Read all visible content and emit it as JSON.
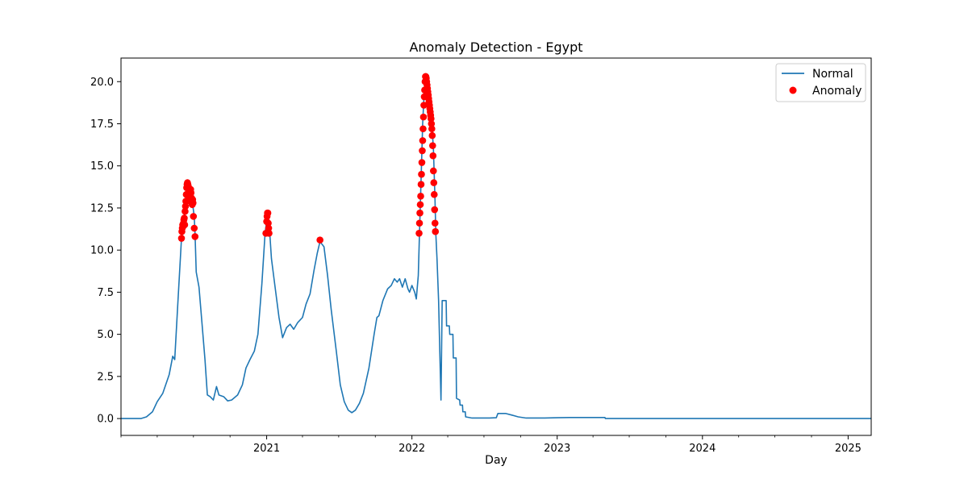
{
  "chart_data": {
    "type": "line",
    "title": "Anomaly Detection - Egypt",
    "xlabel": "Day",
    "ylabel": "",
    "x_type": "date",
    "xlim": [
      "2020-01-01",
      "2025-02-28"
    ],
    "ylim": [
      -1.0,
      21.4
    ],
    "yticks": [
      0.0,
      2.5,
      5.0,
      7.5,
      10.0,
      12.5,
      15.0,
      17.5,
      20.0
    ],
    "ytick_labels": [
      "0.0",
      "2.5",
      "5.0",
      "7.5",
      "10.0",
      "12.5",
      "15.0",
      "17.5",
      "20.0"
    ],
    "xticks": [
      "2021-01-01",
      "2022-01-01",
      "2023-01-01",
      "2024-01-01",
      "2025-01-01"
    ],
    "xtick_labels": [
      "2021",
      "2022",
      "2023",
      "2024",
      "2025"
    ],
    "grid": false,
    "legend_position": "top-right",
    "colors": {
      "normal": "#1f77b4",
      "anomaly": "#ff0000"
    },
    "series": [
      {
        "name": "Normal",
        "kind": "line",
        "points": [
          [
            "2020-01-01",
            0.0
          ],
          [
            "2020-02-20",
            0.0
          ],
          [
            "2020-03-05",
            0.1
          ],
          [
            "2020-03-20",
            0.4
          ],
          [
            "2020-04-01",
            1.0
          ],
          [
            "2020-04-15",
            1.5
          ],
          [
            "2020-05-01",
            2.6
          ],
          [
            "2020-05-10",
            3.7
          ],
          [
            "2020-05-15",
            3.5
          ],
          [
            "2020-05-22",
            6.5
          ],
          [
            "2020-06-01",
            10.7
          ],
          [
            "2020-06-05",
            11.2
          ],
          [
            "2020-06-08",
            11.8
          ],
          [
            "2020-06-10",
            12.6
          ],
          [
            "2020-06-13",
            13.4
          ],
          [
            "2020-06-16",
            14.0
          ],
          [
            "2020-06-20",
            13.6
          ],
          [
            "2020-06-24",
            13.2
          ],
          [
            "2020-06-28",
            12.9
          ],
          [
            "2020-07-03",
            12.0
          ],
          [
            "2020-07-05",
            11.0
          ],
          [
            "2020-07-08",
            8.7
          ],
          [
            "2020-07-15",
            7.8
          ],
          [
            "2020-07-22",
            5.8
          ],
          [
            "2020-07-30",
            3.5
          ],
          [
            "2020-08-05",
            1.4
          ],
          [
            "2020-08-12",
            1.3
          ],
          [
            "2020-08-20",
            1.1
          ],
          [
            "2020-08-28",
            1.9
          ],
          [
            "2020-09-03",
            1.4
          ],
          [
            "2020-09-15",
            1.3
          ],
          [
            "2020-09-25",
            1.05
          ],
          [
            "2020-10-05",
            1.1
          ],
          [
            "2020-10-20",
            1.4
          ],
          [
            "2020-11-01",
            2.0
          ],
          [
            "2020-11-10",
            3.0
          ],
          [
            "2020-11-20",
            3.5
          ],
          [
            "2020-12-01",
            4.0
          ],
          [
            "2020-12-10",
            5.0
          ],
          [
            "2020-12-20",
            8.0
          ],
          [
            "2020-12-28",
            11.0
          ],
          [
            "2021-01-03",
            12.1
          ],
          [
            "2021-01-08",
            11.3
          ],
          [
            "2021-01-13",
            9.5
          ],
          [
            "2021-01-20",
            8.2
          ],
          [
            "2021-02-01",
            6.0
          ],
          [
            "2021-02-10",
            4.8
          ],
          [
            "2021-02-20",
            5.4
          ],
          [
            "2021-03-01",
            5.6
          ],
          [
            "2021-03-10",
            5.3
          ],
          [
            "2021-03-20",
            5.7
          ],
          [
            "2021-04-01",
            6.0
          ],
          [
            "2021-04-10",
            6.8
          ],
          [
            "2021-04-20",
            7.4
          ],
          [
            "2021-04-30",
            8.8
          ],
          [
            "2021-05-08",
            9.8
          ],
          [
            "2021-05-15",
            10.5
          ],
          [
            "2021-05-25",
            10.2
          ],
          [
            "2021-06-03",
            8.5
          ],
          [
            "2021-06-12",
            6.5
          ],
          [
            "2021-06-25",
            4.0
          ],
          [
            "2021-07-05",
            2.0
          ],
          [
            "2021-07-15",
            1.0
          ],
          [
            "2021-07-25",
            0.5
          ],
          [
            "2021-08-03",
            0.35
          ],
          [
            "2021-08-12",
            0.5
          ],
          [
            "2021-08-22",
            0.9
          ],
          [
            "2021-09-01",
            1.5
          ],
          [
            "2021-09-15",
            3.0
          ],
          [
            "2021-09-28",
            5.0
          ],
          [
            "2021-10-05",
            6.0
          ],
          [
            "2021-10-10",
            6.1
          ],
          [
            "2021-10-20",
            7.0
          ],
          [
            "2021-11-01",
            7.7
          ],
          [
            "2021-11-10",
            7.9
          ],
          [
            "2021-11-18",
            8.3
          ],
          [
            "2021-11-25",
            8.1
          ],
          [
            "2021-12-01",
            8.3
          ],
          [
            "2021-12-08",
            7.8
          ],
          [
            "2021-12-15",
            8.3
          ],
          [
            "2021-12-22",
            7.7
          ],
          [
            "2021-12-26",
            7.5
          ],
          [
            "2022-01-01",
            7.9
          ],
          [
            "2022-01-08",
            7.5
          ],
          [
            "2022-01-12",
            7.1
          ],
          [
            "2022-01-17",
            8.5
          ],
          [
            "2022-01-20",
            11.0
          ],
          [
            "2022-01-22",
            12.6
          ],
          [
            "2022-01-25",
            15.0
          ],
          [
            "2022-01-28",
            17.5
          ],
          [
            "2022-02-01",
            19.5
          ],
          [
            "2022-02-04",
            20.3
          ],
          [
            "2022-02-08",
            19.8
          ],
          [
            "2022-02-12",
            19.0
          ],
          [
            "2022-02-16",
            18.3
          ],
          [
            "2022-02-20",
            17.5
          ],
          [
            "2022-02-24",
            16.0
          ],
          [
            "2022-02-28",
            13.0
          ],
          [
            "2022-03-02",
            11.0
          ],
          [
            "2022-03-05",
            9.5
          ],
          [
            "2022-03-09",
            7.0
          ],
          [
            "2022-03-12",
            4.0
          ],
          [
            "2022-03-15",
            1.1
          ],
          [
            "2022-03-16",
            3.0
          ],
          [
            "2022-03-18",
            7.0
          ],
          [
            "2022-03-28",
            7.0
          ],
          [
            "2022-03-29",
            5.5
          ],
          [
            "2022-04-05",
            5.5
          ],
          [
            "2022-04-06",
            5.0
          ],
          [
            "2022-04-14",
            5.0
          ],
          [
            "2022-04-15",
            3.6
          ],
          [
            "2022-04-22",
            3.6
          ],
          [
            "2022-04-23",
            1.2
          ],
          [
            "2022-05-01",
            1.1
          ],
          [
            "2022-05-02",
            0.8
          ],
          [
            "2022-05-08",
            0.8
          ],
          [
            "2022-05-09",
            0.4
          ],
          [
            "2022-05-15",
            0.4
          ],
          [
            "2022-05-16",
            0.1
          ],
          [
            "2022-06-01",
            0.03
          ],
          [
            "2022-07-15",
            0.03
          ],
          [
            "2022-08-01",
            0.05
          ],
          [
            "2022-08-05",
            0.3
          ],
          [
            "2022-08-25",
            0.3
          ],
          [
            "2022-09-10",
            0.2
          ],
          [
            "2022-09-25",
            0.1
          ],
          [
            "2022-10-15",
            0.03
          ],
          [
            "2022-12-01",
            0.03
          ],
          [
            "2023-01-01",
            0.05
          ],
          [
            "2023-02-01",
            0.06
          ],
          [
            "2023-04-01",
            0.06
          ],
          [
            "2023-05-01",
            0.06
          ],
          [
            "2023-05-02",
            0.0
          ],
          [
            "2025-02-28",
            0.0
          ]
        ]
      },
      {
        "name": "Anomaly",
        "kind": "scatter",
        "points": [
          [
            "2020-06-01",
            10.7
          ],
          [
            "2020-06-02",
            11.1
          ],
          [
            "2020-06-03",
            11.3
          ],
          [
            "2020-06-04",
            11.5
          ],
          [
            "2020-06-05",
            11.4
          ],
          [
            "2020-06-06",
            11.6
          ],
          [
            "2020-06-07",
            11.8
          ],
          [
            "2020-06-08",
            11.9
          ],
          [
            "2020-06-09",
            11.5
          ],
          [
            "2020-06-10",
            12.3
          ],
          [
            "2020-06-11",
            12.6
          ],
          [
            "2020-06-12",
            12.9
          ],
          [
            "2020-06-13",
            13.3
          ],
          [
            "2020-06-14",
            13.7
          ],
          [
            "2020-06-15",
            13.9
          ],
          [
            "2020-06-16",
            14.0
          ],
          [
            "2020-06-17",
            13.9
          ],
          [
            "2020-06-18",
            13.8
          ],
          [
            "2020-06-19",
            13.7
          ],
          [
            "2020-06-20",
            13.5
          ],
          [
            "2020-06-21",
            13.3
          ],
          [
            "2020-06-22",
            13.1
          ],
          [
            "2020-06-23",
            12.9
          ],
          [
            "2020-06-24",
            13.6
          ],
          [
            "2020-06-25",
            13.4
          ],
          [
            "2020-06-26",
            13.1
          ],
          [
            "2020-06-27",
            12.8
          ],
          [
            "2020-06-28",
            12.7
          ],
          [
            "2020-06-29",
            13.0
          ],
          [
            "2020-06-30",
            12.8
          ],
          [
            "2020-07-01",
            12.0
          ],
          [
            "2020-07-03",
            11.3
          ],
          [
            "2020-07-05",
            10.8
          ],
          [
            "2020-12-30",
            11.0
          ],
          [
            "2021-01-01",
            11.7
          ],
          [
            "2021-01-02",
            12.0
          ],
          [
            "2021-01-03",
            12.2
          ],
          [
            "2021-01-04",
            12.2
          ],
          [
            "2021-01-05",
            11.6
          ],
          [
            "2021-01-06",
            11.3
          ],
          [
            "2021-01-07",
            11.0
          ],
          [
            "2021-05-15",
            10.6
          ],
          [
            "2022-01-19",
            11.0
          ],
          [
            "2022-01-20",
            11.6
          ],
          [
            "2022-01-21",
            12.2
          ],
          [
            "2022-01-22",
            12.7
          ],
          [
            "2022-01-23",
            13.2
          ],
          [
            "2022-01-24",
            13.9
          ],
          [
            "2022-01-25",
            14.5
          ],
          [
            "2022-01-26",
            15.2
          ],
          [
            "2022-01-27",
            15.9
          ],
          [
            "2022-01-28",
            16.5
          ],
          [
            "2022-01-29",
            17.2
          ],
          [
            "2022-01-30",
            17.9
          ],
          [
            "2022-01-31",
            18.6
          ],
          [
            "2022-02-01",
            19.1
          ],
          [
            "2022-02-02",
            19.5
          ],
          [
            "2022-02-03",
            20.0
          ],
          [
            "2022-02-04",
            20.3
          ],
          [
            "2022-02-05",
            20.3
          ],
          [
            "2022-02-06",
            20.2
          ],
          [
            "2022-02-07",
            20.0
          ],
          [
            "2022-02-08",
            19.8
          ],
          [
            "2022-02-09",
            19.6
          ],
          [
            "2022-02-10",
            19.4
          ],
          [
            "2022-02-11",
            19.2
          ],
          [
            "2022-02-12",
            19.0
          ],
          [
            "2022-02-13",
            18.8
          ],
          [
            "2022-02-14",
            18.6
          ],
          [
            "2022-02-15",
            18.4
          ],
          [
            "2022-02-16",
            18.2
          ],
          [
            "2022-02-17",
            18.0
          ],
          [
            "2022-02-18",
            17.8
          ],
          [
            "2022-02-19",
            17.5
          ],
          [
            "2022-02-20",
            17.2
          ],
          [
            "2022-02-21",
            16.8
          ],
          [
            "2022-02-22",
            16.2
          ],
          [
            "2022-02-23",
            15.6
          ],
          [
            "2022-02-24",
            14.7
          ],
          [
            "2022-02-25",
            14.0
          ],
          [
            "2022-02-26",
            13.3
          ],
          [
            "2022-02-27",
            12.4
          ],
          [
            "2022-02-28",
            11.6
          ],
          [
            "2022-03-01",
            11.1
          ]
        ]
      }
    ]
  }
}
